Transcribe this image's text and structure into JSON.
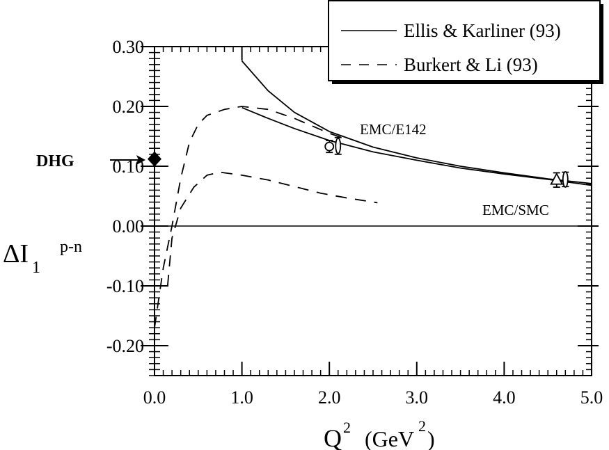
{
  "chart_data": {
    "type": "line",
    "title": "",
    "xlabel": "Q²  (GeV²)",
    "ylabel": "ΔI₁ᵖ⁻ⁿ",
    "xlim": [
      0.0,
      5.0
    ],
    "ylim": [
      -0.25,
      0.3
    ],
    "x_ticks": [
      "0.0",
      "1.0",
      "2.0",
      "3.0",
      "4.0",
      "5.0"
    ],
    "y_ticks": [
      "-0.20",
      "-0.10",
      "0.00",
      "0.10",
      "0.20",
      "0.30"
    ],
    "legend": {
      "placement": "top-right",
      "entries": [
        {
          "label": "Ellis & Karliner (93)",
          "style": "solid"
        },
        {
          "label": "Burkert & Li (93)",
          "style": "dashed"
        }
      ]
    },
    "series": [
      {
        "name": "Ellis & Karliner (93)",
        "style": "solid",
        "points": [
          [
            1.0,
            0.276
          ],
          [
            1.3,
            0.226
          ],
          [
            1.6,
            0.19
          ],
          [
            2.0,
            0.158
          ],
          [
            2.5,
            0.132
          ],
          [
            3.0,
            0.114
          ],
          [
            3.5,
            0.1
          ],
          [
            4.0,
            0.089
          ],
          [
            4.5,
            0.079
          ],
          [
            5.0,
            0.071
          ]
        ]
      },
      {
        "style": "solid",
        "points": [
          [
            1.0,
            0.198
          ],
          [
            1.3,
            0.18
          ],
          [
            1.6,
            0.163
          ],
          [
            2.0,
            0.143
          ],
          [
            2.5,
            0.124
          ],
          [
            3.0,
            0.11
          ],
          [
            3.5,
            0.097
          ],
          [
            4.0,
            0.087
          ],
          [
            4.5,
            0.078
          ],
          [
            5.0,
            0.068
          ]
        ]
      },
      {
        "name": "Burkert & Li (93)",
        "style": "dashed",
        "points": [
          [
            0.0,
            -0.17
          ],
          [
            0.1,
            -0.07
          ],
          [
            0.2,
            0.0
          ],
          [
            0.3,
            0.08
          ],
          [
            0.4,
            0.14
          ],
          [
            0.5,
            0.17
          ],
          [
            0.6,
            0.185
          ],
          [
            0.8,
            0.195
          ],
          [
            1.0,
            0.2
          ],
          [
            1.3,
            0.195
          ],
          [
            1.6,
            0.18
          ],
          [
            2.0,
            0.155
          ],
          [
            2.2,
            0.145
          ]
        ]
      },
      {
        "style": "dashed",
        "points": [
          [
            0.15,
            -0.1
          ],
          [
            0.2,
            -0.02
          ],
          [
            0.3,
            0.03
          ],
          [
            0.45,
            0.065
          ],
          [
            0.6,
            0.085
          ],
          [
            0.75,
            0.09
          ],
          [
            1.0,
            0.085
          ],
          [
            1.3,
            0.077
          ],
          [
            1.6,
            0.066
          ],
          [
            1.9,
            0.055
          ],
          [
            2.2,
            0.047
          ],
          [
            2.55,
            0.039
          ]
        ]
      }
    ],
    "data_points": [
      {
        "label": "DHG",
        "marker": "diamond-filled",
        "x": 0.0,
        "y": 0.112
      },
      {
        "label": "EMC/E142",
        "marker": "circle-open",
        "x": 2.0,
        "y": 0.133,
        "err": 0.01
      },
      {
        "marker": "ellipse-open",
        "x": 2.1,
        "y": 0.134,
        "err": 0.014
      },
      {
        "label": "EMC/SMC",
        "marker": "triangle-open",
        "x": 4.6,
        "y": 0.077,
        "err": 0.012
      },
      {
        "marker": "ellipse-open",
        "x": 4.7,
        "y": 0.078,
        "err": 0.012
      }
    ],
    "annotations": [
      "EMC/E142",
      "EMC/SMC",
      "DHG"
    ],
    "grid": false
  }
}
